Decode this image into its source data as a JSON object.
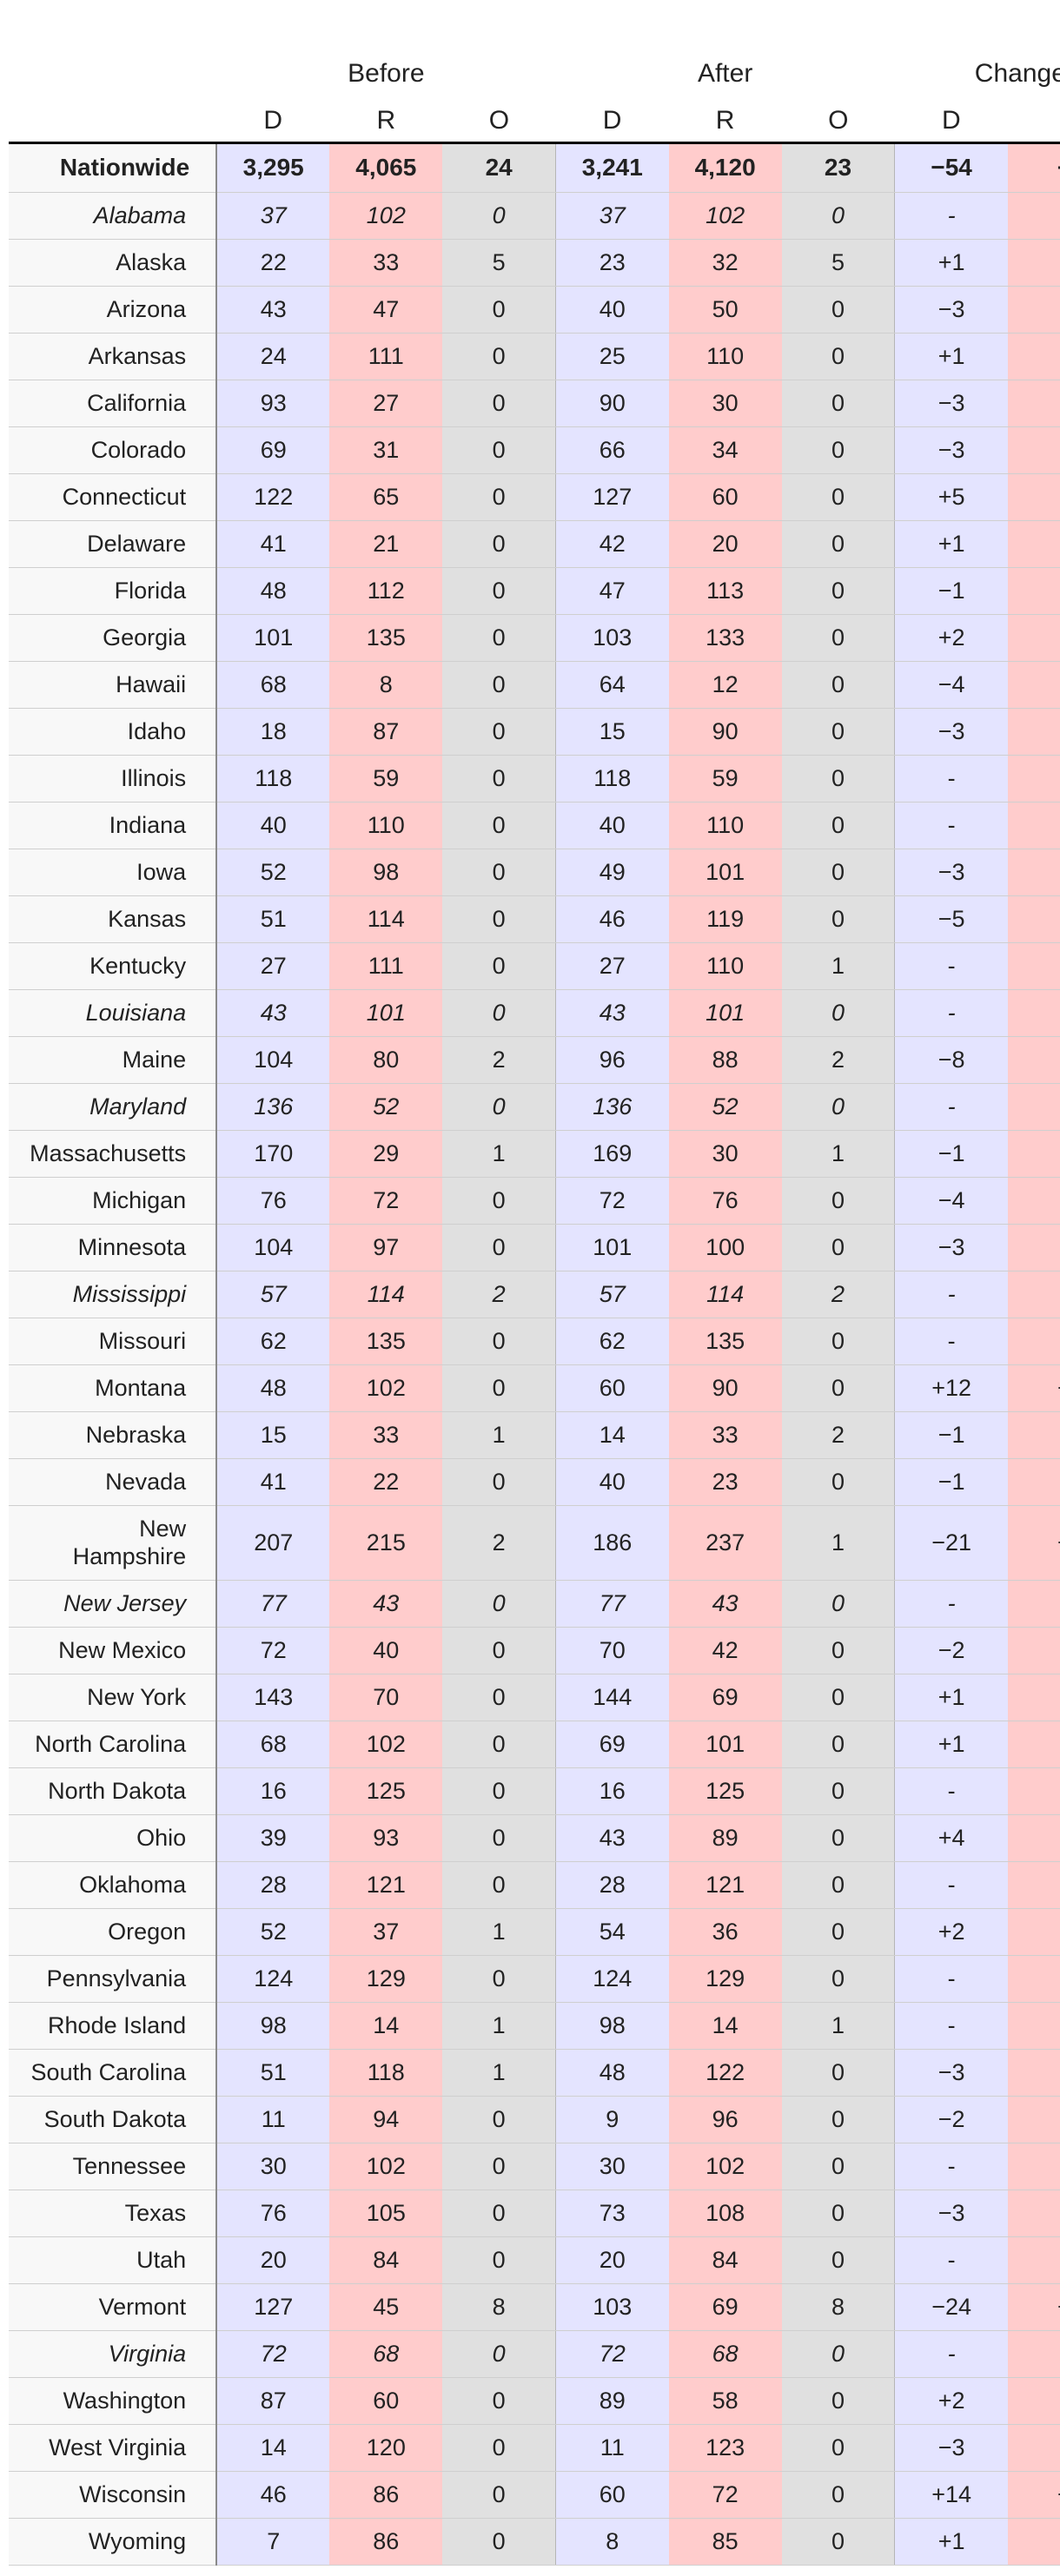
{
  "headers": {
    "group_before": "Before",
    "group_after": "After",
    "group_change": "Change",
    "sub": [
      "D",
      "R",
      "O",
      "D",
      "R",
      "O",
      "D",
      ""
    ]
  },
  "nationwide": {
    "name": "Nationwide",
    "cells": [
      "3,295",
      "4,065",
      "24",
      "3,241",
      "4,120",
      "23",
      "−54",
      "+"
    ]
  },
  "rows": [
    {
      "name": "Alabama",
      "italic": true,
      "cells": [
        "37",
        "102",
        "0",
        "37",
        "102",
        "0",
        "-",
        "-"
      ]
    },
    {
      "name": "Alaska",
      "italic": false,
      "cells": [
        "22",
        "33",
        "5",
        "23",
        "32",
        "5",
        "+1",
        "-"
      ]
    },
    {
      "name": "Arizona",
      "italic": false,
      "cells": [
        "43",
        "47",
        "0",
        "40",
        "50",
        "0",
        "−3",
        "-"
      ]
    },
    {
      "name": "Arkansas",
      "italic": false,
      "cells": [
        "24",
        "111",
        "0",
        "25",
        "110",
        "0",
        "+1",
        "-"
      ]
    },
    {
      "name": "California",
      "italic": false,
      "cells": [
        "93",
        "27",
        "0",
        "90",
        "30",
        "0",
        "−3",
        "-"
      ]
    },
    {
      "name": "Colorado",
      "italic": false,
      "cells": [
        "69",
        "31",
        "0",
        "66",
        "34",
        "0",
        "−3",
        "-"
      ]
    },
    {
      "name": "Connecticut",
      "italic": false,
      "cells": [
        "122",
        "65",
        "0",
        "127",
        "60",
        "0",
        "+5",
        "-"
      ]
    },
    {
      "name": "Delaware",
      "italic": false,
      "cells": [
        "41",
        "21",
        "0",
        "42",
        "20",
        "0",
        "+1",
        "-"
      ]
    },
    {
      "name": "Florida",
      "italic": false,
      "cells": [
        "48",
        "112",
        "0",
        "47",
        "113",
        "0",
        "−1",
        "-"
      ]
    },
    {
      "name": "Georgia",
      "italic": false,
      "cells": [
        "101",
        "135",
        "0",
        "103",
        "133",
        "0",
        "+2",
        "-"
      ]
    },
    {
      "name": "Hawaii",
      "italic": false,
      "cells": [
        "68",
        "8",
        "0",
        "64",
        "12",
        "0",
        "−4",
        "-"
      ]
    },
    {
      "name": "Idaho",
      "italic": false,
      "cells": [
        "18",
        "87",
        "0",
        "15",
        "90",
        "0",
        "−3",
        "-"
      ]
    },
    {
      "name": "Illinois",
      "italic": false,
      "cells": [
        "118",
        "59",
        "0",
        "118",
        "59",
        "0",
        "-",
        "-"
      ]
    },
    {
      "name": "Indiana",
      "italic": false,
      "cells": [
        "40",
        "110",
        "0",
        "40",
        "110",
        "0",
        "-",
        "-"
      ]
    },
    {
      "name": "Iowa",
      "italic": false,
      "cells": [
        "52",
        "98",
        "0",
        "49",
        "101",
        "0",
        "−3",
        "-"
      ]
    },
    {
      "name": "Kansas",
      "italic": false,
      "cells": [
        "51",
        "114",
        "0",
        "46",
        "119",
        "0",
        "−5",
        "-"
      ]
    },
    {
      "name": "Kentucky",
      "italic": false,
      "cells": [
        "27",
        "111",
        "0",
        "27",
        "110",
        "1",
        "-",
        "-"
      ]
    },
    {
      "name": "Louisiana",
      "italic": true,
      "cells": [
        "43",
        "101",
        "0",
        "43",
        "101",
        "0",
        "-",
        "-"
      ]
    },
    {
      "name": "Maine",
      "italic": false,
      "cells": [
        "104",
        "80",
        "2",
        "96",
        "88",
        "2",
        "−8",
        "-"
      ]
    },
    {
      "name": "Maryland",
      "italic": true,
      "cells": [
        "136",
        "52",
        "0",
        "136",
        "52",
        "0",
        "-",
        "-"
      ]
    },
    {
      "name": "Massachusetts",
      "italic": false,
      "cells": [
        "170",
        "29",
        "1",
        "169",
        "30",
        "1",
        "−1",
        "-"
      ]
    },
    {
      "name": "Michigan",
      "italic": false,
      "cells": [
        "76",
        "72",
        "0",
        "72",
        "76",
        "0",
        "−4",
        "-"
      ]
    },
    {
      "name": "Minnesota",
      "italic": false,
      "cells": [
        "104",
        "97",
        "0",
        "101",
        "100",
        "0",
        "−3",
        "-"
      ]
    },
    {
      "name": "Mississippi",
      "italic": true,
      "cells": [
        "57",
        "114",
        "2",
        "57",
        "114",
        "2",
        "-",
        "-"
      ]
    },
    {
      "name": "Missouri",
      "italic": false,
      "cells": [
        "62",
        "135",
        "0",
        "62",
        "135",
        "0",
        "-",
        "-"
      ]
    },
    {
      "name": "Montana",
      "italic": false,
      "cells": [
        "48",
        "102",
        "0",
        "60",
        "90",
        "0",
        "+12",
        "−"
      ]
    },
    {
      "name": "Nebraska",
      "italic": false,
      "cells": [
        "15",
        "33",
        "1",
        "14",
        "33",
        "2",
        "−1",
        "-"
      ]
    },
    {
      "name": "Nevada",
      "italic": false,
      "cells": [
        "41",
        "22",
        "0",
        "40",
        "23",
        "0",
        "−1",
        "-"
      ]
    },
    {
      "name": "New Hampshire",
      "italic": false,
      "tall": true,
      "cells": [
        "207",
        "215",
        "2",
        "186",
        "237",
        "1",
        "−21",
        "+"
      ]
    },
    {
      "name": "New Jersey",
      "italic": true,
      "cells": [
        "77",
        "43",
        "0",
        "77",
        "43",
        "0",
        "-",
        "-"
      ]
    },
    {
      "name": "New Mexico",
      "italic": false,
      "cells": [
        "72",
        "40",
        "0",
        "70",
        "42",
        "0",
        "−2",
        "-"
      ]
    },
    {
      "name": "New York",
      "italic": false,
      "cells": [
        "143",
        "70",
        "0",
        "144",
        "69",
        "0",
        "+1",
        "-"
      ]
    },
    {
      "name": "North Carolina",
      "italic": false,
      "cells": [
        "68",
        "102",
        "0",
        "69",
        "101",
        "0",
        "+1",
        "-"
      ]
    },
    {
      "name": "North Dakota",
      "italic": false,
      "cells": [
        "16",
        "125",
        "0",
        "16",
        "125",
        "0",
        "-",
        "-"
      ]
    },
    {
      "name": "Ohio",
      "italic": false,
      "cells": [
        "39",
        "93",
        "0",
        "43",
        "89",
        "0",
        "+4",
        "-"
      ]
    },
    {
      "name": "Oklahoma",
      "italic": false,
      "cells": [
        "28",
        "121",
        "0",
        "28",
        "121",
        "0",
        "-",
        "-"
      ]
    },
    {
      "name": "Oregon",
      "italic": false,
      "cells": [
        "52",
        "37",
        "1",
        "54",
        "36",
        "0",
        "+2",
        "-"
      ]
    },
    {
      "name": "Pennsylvania",
      "italic": false,
      "cells": [
        "124",
        "129",
        "0",
        "124",
        "129",
        "0",
        "-",
        "-"
      ]
    },
    {
      "name": "Rhode Island",
      "italic": false,
      "cells": [
        "98",
        "14",
        "1",
        "98",
        "14",
        "1",
        "-",
        "-"
      ]
    },
    {
      "name": "South Carolina",
      "italic": false,
      "cells": [
        "51",
        "118",
        "1",
        "48",
        "122",
        "0",
        "−3",
        "-"
      ]
    },
    {
      "name": "South Dakota",
      "italic": false,
      "cells": [
        "11",
        "94",
        "0",
        "9",
        "96",
        "0",
        "−2",
        "-"
      ]
    },
    {
      "name": "Tennessee",
      "italic": false,
      "cells": [
        "30",
        "102",
        "0",
        "30",
        "102",
        "0",
        "-",
        "-"
      ]
    },
    {
      "name": "Texas",
      "italic": false,
      "cells": [
        "76",
        "105",
        "0",
        "73",
        "108",
        "0",
        "−3",
        "-"
      ]
    },
    {
      "name": "Utah",
      "italic": false,
      "cells": [
        "20",
        "84",
        "0",
        "20",
        "84",
        "0",
        "-",
        "-"
      ]
    },
    {
      "name": "Vermont",
      "italic": false,
      "cells": [
        "127",
        "45",
        "8",
        "103",
        "69",
        "8",
        "−24",
        "+"
      ]
    },
    {
      "name": "Virginia",
      "italic": true,
      "cells": [
        "72",
        "68",
        "0",
        "72",
        "68",
        "0",
        "-",
        "-"
      ]
    },
    {
      "name": "Washington",
      "italic": false,
      "cells": [
        "87",
        "60",
        "0",
        "89",
        "58",
        "0",
        "+2",
        "-"
      ]
    },
    {
      "name": "West Virginia",
      "italic": false,
      "cells": [
        "14",
        "120",
        "0",
        "11",
        "123",
        "0",
        "−3",
        "-"
      ]
    },
    {
      "name": "Wisconsin",
      "italic": false,
      "cells": [
        "46",
        "86",
        "0",
        "60",
        "72",
        "0",
        "+14",
        "−"
      ]
    },
    {
      "name": "Wyoming",
      "italic": false,
      "cells": [
        "7",
        "86",
        "0",
        "8",
        "85",
        "0",
        "+1",
        "-"
      ]
    }
  ]
}
